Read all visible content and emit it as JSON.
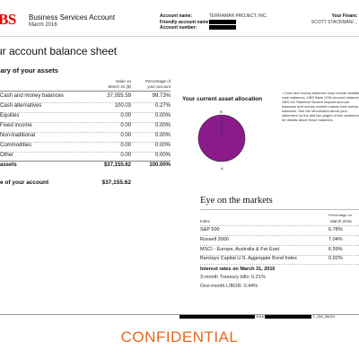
{
  "header": {
    "logo": "BS",
    "account_title": "Business Services Account",
    "date": "March 2016",
    "account_name_label": "Account name:",
    "account_name": "TERRAMAR PROJECT, INC.",
    "friendly_name_label": "Friendly account name:",
    "account_number_label": "Account number:",
    "fa_label": "Your Financ",
    "fa_name": "SCOTT STACKMAN/..."
  },
  "balance": {
    "title": "ur account balance sheet",
    "summary_title": "mary of your assets",
    "col_value": "Value on\nMarch 31 ($)",
    "col_pct": "Percentage of\nyour account",
    "rows": [
      {
        "name": "Cash and money balances",
        "value": "37,055.59",
        "pct": "99.73%"
      },
      {
        "name": "Cash alternatives",
        "value": "100.03",
        "pct": "0.27%"
      },
      {
        "name": "Equities",
        "value": "0.00",
        "pct": "0.00%"
      },
      {
        "name": "Fixed income",
        "value": "0.00",
        "pct": "0.00%"
      },
      {
        "name": "Non-traditional",
        "value": "0.00",
        "pct": "0.00%"
      },
      {
        "name": "Commodities",
        "value": "0.00",
        "pct": "0.00%"
      },
      {
        "name": "Other",
        "value": "0.00",
        "pct": "0.00%"
      }
    ],
    "total_label": "assets",
    "total_value": "$37,155.62",
    "total_pct": "100.00%",
    "account_value_label": "e of your account",
    "account_value": "$37,155.62"
  },
  "allocation": {
    "title": "Your current asset allocation",
    "label_b": "B",
    "label_a": "A",
    "note": "• Cash and money balances may include available cash balances, UBS Bank USA account balances, UBS AG Stamford Branch deposit account balances and money market mutual fund sweep balances. See the information about your statement on the last two pages of this statement for details about those balances.",
    "color": "#8b1a8b"
  },
  "markets": {
    "title": "Eye on the markets",
    "pct_header": "Percentage ch",
    "index_header": "Index",
    "period_header": "March 2016",
    "rows": [
      {
        "name": "S&P 500",
        "value": "6.78%"
      },
      {
        "name": "Russell 3000",
        "value": "7.04%"
      },
      {
        "name": "MSCI - Europe, Australia & Far East",
        "value": "6.59%"
      },
      {
        "name": "Barclays Capital U.S. Aggregate Bond Index",
        "value": "0.92%"
      }
    ],
    "rates_title": "Interest rates on March 31, 2016",
    "rate1": "3-month Treasury bills: 0.21%",
    "rate2": "One-month LIBOR: 0.44%"
  },
  "footer": {
    "page_code": "2016",
    "doc_code": "Y_OM_00024",
    "confidential": "CONFIDENTIAL"
  }
}
